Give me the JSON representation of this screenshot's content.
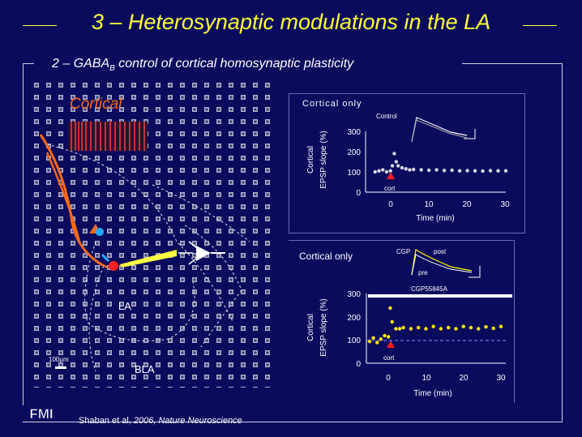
{
  "slide": {
    "title": "3 – Heterosynaptic modulations in the LA",
    "subtitle_pre": "2 – GABA",
    "subtitle_sub": "B",
    "subtitle_post": " control of cortical homosynaptic plasticity",
    "citation_authors": "Shaban et al, ",
    "citation_year_journal": "2006, Nature Neuroscience",
    "logo_text": "FMI"
  },
  "histology": {
    "cortical_label": "Cortical",
    "la_label": "LA",
    "bla_label": "BLA",
    "scale_label": "100µm"
  },
  "panel_top": {
    "title": "Cortical only",
    "inset_label": "Control",
    "arrow_label": "cort",
    "y_axis_label_line1": "Cortical",
    "y_axis_label_line2": "EPSP slope (%)",
    "x_axis_label": "Time (min)",
    "y_ticks": [
      "300",
      "200",
      "100",
      "0"
    ],
    "x_ticks": [
      "0",
      "10",
      "20",
      "30"
    ]
  },
  "panel_bottom": {
    "title": "Cortical only",
    "inset_label_cgp": "CGP",
    "inset_label_post": "post",
    "inset_label_pre": "pre",
    "drug_bar_label": "CGP55845A",
    "arrow_label": "cort",
    "y_axis_label_line1": "Cortical",
    "y_axis_label_line2": "EPSP slope (%)",
    "x_axis_label": "Time (min)",
    "y_ticks": [
      "300",
      "200",
      "100",
      "0"
    ],
    "x_ticks": [
      "0",
      "10",
      "20",
      "30"
    ]
  },
  "chart_data": [
    {
      "type": "scatter",
      "title": "Cortical only",
      "xlabel": "Time (min)",
      "ylabel": "Cortical EPSP slope (%)",
      "xlim": [
        -5,
        30
      ],
      "ylim": [
        0,
        300
      ],
      "series": [
        {
          "values_x": [
            -4,
            -3,
            -2,
            -1,
            0,
            0.5,
            1,
            1.5,
            2,
            3,
            4,
            5,
            6,
            8,
            10,
            12,
            14,
            16,
            18,
            20,
            22,
            24,
            26,
            28,
            30
          ],
          "values_y": [
            100,
            105,
            110,
            100,
            105,
            130,
            190,
            150,
            130,
            120,
            115,
            110,
            112,
            110,
            108,
            110,
            107,
            108,
            105,
            106,
            105,
            104,
            106,
            105,
            105
          ]
        }
      ]
    },
    {
      "type": "scatter",
      "title": "Cortical only",
      "xlabel": "Time (min)",
      "ylabel": "Cortical EPSP slope (%)",
      "xlim": [
        -5,
        30
      ],
      "ylim": [
        0,
        300
      ],
      "series": [
        {
          "values_x": [
            -5,
            -4,
            -3,
            -2,
            -1,
            0,
            0.5,
            1,
            2,
            3,
            4,
            6,
            8,
            10,
            12,
            14,
            16,
            18,
            20,
            22,
            24,
            26,
            28,
            30
          ],
          "values_y": [
            95,
            110,
            90,
            105,
            120,
            115,
            240,
            180,
            150,
            150,
            155,
            150,
            155,
            150,
            160,
            150,
            155,
            150,
            160,
            155,
            150,
            158,
            152,
            160
          ]
        }
      ]
    }
  ],
  "colors": {
    "background": "#0b0b5e",
    "title": "#ffff33",
    "top_data": "#d8d8e8",
    "bottom_data": "#ffee00",
    "arrow": "#ff2020",
    "cortical_label": "#ff6a1a"
  }
}
